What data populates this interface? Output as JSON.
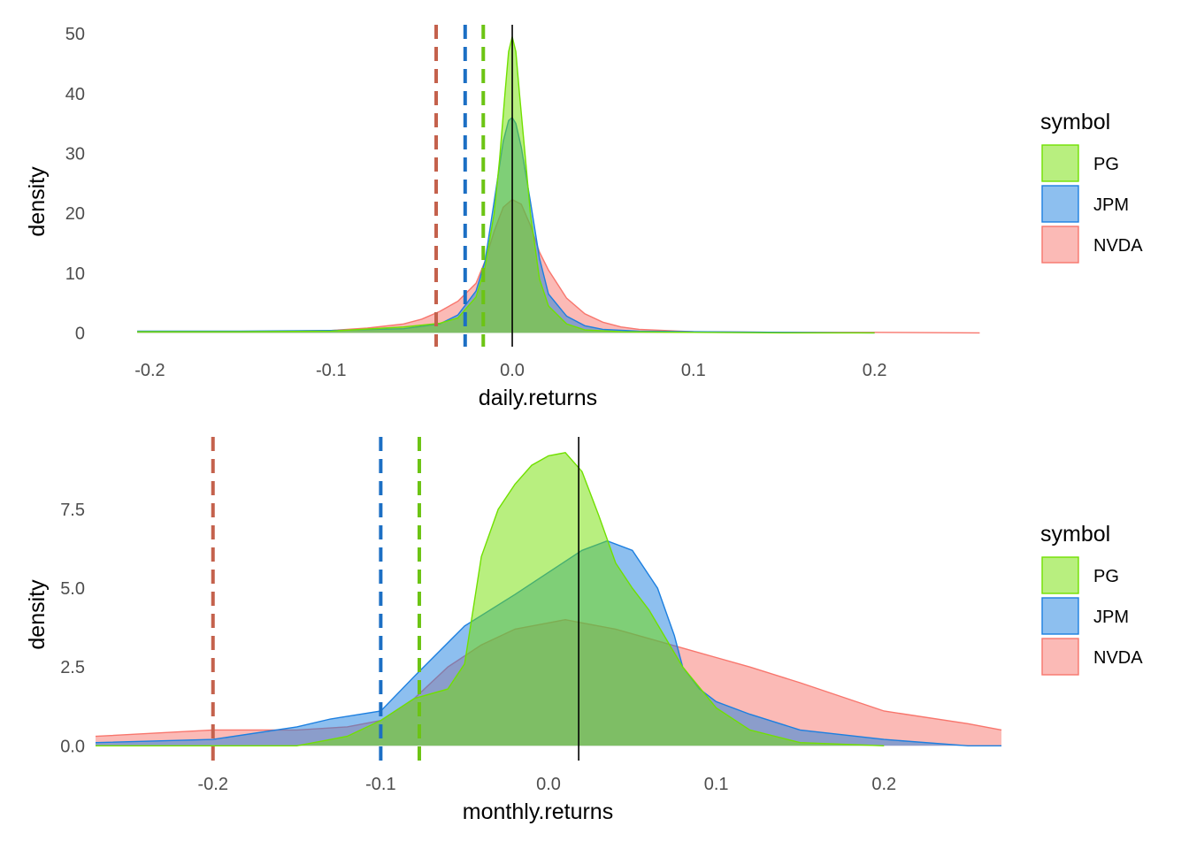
{
  "chart_data": [
    {
      "type": "area",
      "xlabel": "daily.returns",
      "ylabel": "density",
      "xlim": [
        -0.23,
        0.27
      ],
      "ylim": [
        -2.3,
        51.5
      ],
      "x_ticks": [
        {
          "value": -0.2,
          "label": "-0.2"
        },
        {
          "value": -0.1,
          "label": "-0.1"
        },
        {
          "value": 0.0,
          "label": "0.0"
        },
        {
          "value": 0.1,
          "label": "0.1"
        },
        {
          "value": 0.2,
          "label": "0.2"
        }
      ],
      "y_ticks": [
        {
          "value": 0,
          "label": "0"
        },
        {
          "value": 10,
          "label": "10"
        },
        {
          "value": 20,
          "label": "20"
        },
        {
          "value": 30,
          "label": "30"
        },
        {
          "value": 40,
          "label": "40"
        },
        {
          "value": 50,
          "label": "50"
        }
      ],
      "grid": false,
      "legend": {
        "title": "symbol",
        "position": "right"
      },
      "mean_line": {
        "x": 0.0,
        "color": "#000000"
      },
      "series": [
        {
          "name": "NVDA",
          "fill": "#F8766D",
          "stroke": "#F8766D",
          "dashed_x": -0.042,
          "x": [
            -0.207,
            -0.15,
            -0.1,
            -0.08,
            -0.06,
            -0.05,
            -0.04,
            -0.03,
            -0.02,
            -0.015,
            -0.01,
            -0.005,
            0.0,
            0.005,
            0.01,
            0.015,
            0.02,
            0.03,
            0.04,
            0.05,
            0.06,
            0.07,
            0.1,
            0.15,
            0.2,
            0.258
          ],
          "y": [
            0.2,
            0.2,
            0.4,
            0.8,
            1.5,
            2.3,
            3.6,
            5.3,
            8.3,
            12.0,
            17.0,
            21.0,
            22.3,
            21.5,
            18.0,
            13.5,
            10.5,
            5.8,
            3.2,
            1.8,
            1.0,
            0.6,
            0.2,
            0.1,
            0.1,
            0.0
          ]
        },
        {
          "name": "JPM",
          "fill": "#1C7FE0",
          "stroke": "#1C7FE0",
          "dashed_x": -0.026,
          "x": [
            -0.207,
            -0.15,
            -0.1,
            -0.06,
            -0.04,
            -0.03,
            -0.02,
            -0.015,
            -0.01,
            -0.005,
            -0.002,
            0.0,
            0.002,
            0.005,
            0.01,
            0.015,
            0.02,
            0.03,
            0.04,
            0.05,
            0.07,
            0.1,
            0.15,
            0.2
          ],
          "y": [
            0.3,
            0.3,
            0.4,
            0.7,
            1.5,
            3.0,
            7.0,
            12.0,
            22.0,
            32.0,
            35.5,
            36.0,
            35.0,
            31.0,
            22.0,
            12.5,
            6.5,
            2.8,
            1.2,
            0.6,
            0.3,
            0.2,
            0.1,
            0.0
          ]
        },
        {
          "name": "PG",
          "fill": "#71E000",
          "stroke": "#71E000",
          "dashed_x": -0.016,
          "x": [
            -0.207,
            -0.15,
            -0.1,
            -0.06,
            -0.04,
            -0.03,
            -0.02,
            -0.015,
            -0.01,
            -0.007,
            -0.004,
            -0.002,
            0.0,
            0.002,
            0.004,
            0.007,
            0.01,
            0.015,
            0.02,
            0.03,
            0.04,
            0.06,
            0.1,
            0.15,
            0.2
          ],
          "y": [
            0.2,
            0.2,
            0.3,
            1.0,
            1.6,
            2.5,
            6.0,
            11.0,
            20.0,
            29.0,
            40.0,
            47.0,
            49.5,
            47.0,
            40.0,
            30.0,
            20.0,
            9.0,
            4.5,
            1.5,
            0.5,
            0.2,
            0.1,
            0.0,
            0.0
          ]
        }
      ]
    },
    {
      "type": "area",
      "xlabel": "monthly.returns",
      "ylabel": "density",
      "xlim": [
        -0.27,
        0.27
      ],
      "ylim": [
        -0.47,
        9.8
      ],
      "x_ticks": [
        {
          "value": -0.2,
          "label": "-0.2"
        },
        {
          "value": -0.1,
          "label": "-0.1"
        },
        {
          "value": 0.0,
          "label": "0.0"
        },
        {
          "value": 0.1,
          "label": "0.1"
        },
        {
          "value": 0.2,
          "label": "0.2"
        }
      ],
      "y_ticks": [
        {
          "value": 0.0,
          "label": "0.0"
        },
        {
          "value": 2.5,
          "label": "2.5"
        },
        {
          "value": 5.0,
          "label": "5.0"
        },
        {
          "value": 7.5,
          "label": "7.5"
        }
      ],
      "grid": false,
      "legend": {
        "title": "symbol",
        "position": "right"
      },
      "mean_line": {
        "x": 0.018,
        "color": "#000000"
      },
      "series": [
        {
          "name": "NVDA",
          "fill": "#F8766D",
          "stroke": "#F8766D",
          "dashed_x": -0.2,
          "x": [
            -0.27,
            -0.2,
            -0.15,
            -0.12,
            -0.1,
            -0.08,
            -0.06,
            -0.04,
            -0.02,
            0.0,
            0.01,
            0.02,
            0.04,
            0.06,
            0.08,
            0.1,
            0.12,
            0.15,
            0.2,
            0.25,
            0.27
          ],
          "y": [
            0.3,
            0.5,
            0.5,
            0.6,
            0.8,
            1.5,
            2.5,
            3.2,
            3.7,
            3.9,
            4.0,
            3.9,
            3.7,
            3.4,
            3.1,
            2.8,
            2.5,
            2.0,
            1.1,
            0.7,
            0.5
          ]
        },
        {
          "name": "JPM",
          "fill": "#1C7FE0",
          "stroke": "#1C7FE0",
          "dashed_x": -0.1,
          "x": [
            -0.27,
            -0.2,
            -0.15,
            -0.13,
            -0.1,
            -0.08,
            -0.05,
            -0.02,
            0.0,
            0.02,
            0.035,
            0.05,
            0.065,
            0.075,
            0.08,
            0.09,
            0.1,
            0.12,
            0.15,
            0.2,
            0.25,
            0.27
          ],
          "y": [
            0.1,
            0.2,
            0.6,
            0.85,
            1.1,
            2.2,
            3.8,
            4.8,
            5.5,
            6.2,
            6.5,
            6.2,
            5.0,
            3.5,
            2.5,
            1.8,
            1.4,
            1.0,
            0.5,
            0.2,
            0.0,
            0.0
          ]
        },
        {
          "name": "PG",
          "fill": "#71E000",
          "stroke": "#71E000",
          "dashed_x": -0.077,
          "x": [
            -0.27,
            -0.2,
            -0.15,
            -0.12,
            -0.1,
            -0.08,
            -0.06,
            -0.05,
            -0.04,
            -0.03,
            -0.02,
            -0.01,
            0.0,
            0.01,
            0.02,
            0.03,
            0.04,
            0.05,
            0.06,
            0.08,
            0.1,
            0.12,
            0.15,
            0.2
          ],
          "y": [
            0.0,
            0.0,
            0.0,
            0.3,
            0.8,
            1.5,
            1.8,
            2.6,
            6.0,
            7.5,
            8.3,
            8.9,
            9.2,
            9.3,
            8.7,
            7.3,
            5.8,
            5.0,
            4.3,
            2.5,
            1.2,
            0.5,
            0.1,
            0.0
          ]
        }
      ]
    }
  ]
}
